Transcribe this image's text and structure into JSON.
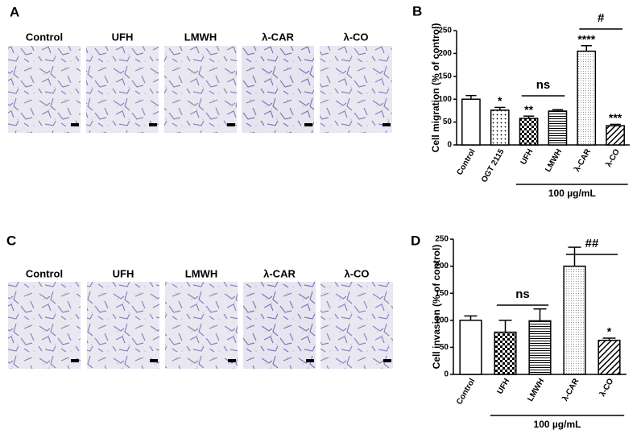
{
  "panels": {
    "A": {
      "label": "A",
      "images": [
        "Control",
        "UFH",
        "LMWH",
        "λ-CAR",
        "λ-CO"
      ]
    },
    "C": {
      "label": "C",
      "images": [
        "Control",
        "UFH",
        "LMWH",
        "λ-CAR",
        "λ-CO"
      ]
    }
  },
  "chart_data": [
    {
      "type": "bar",
      "panel_label": "B",
      "y_label": "Cell migration (% of control)",
      "categories": [
        "Control",
        "OGT 2115",
        "UFH",
        "LMWH",
        "λ-CAR",
        "λ-CO"
      ],
      "values": [
        100,
        76,
        58,
        74,
        205,
        42
      ],
      "errors": [
        8,
        6,
        5,
        3,
        12,
        3
      ],
      "significance": [
        null,
        "*",
        "**",
        null,
        "****",
        "***"
      ],
      "annotations": [
        "ns",
        "#"
      ],
      "group_label": "100 µg/mL",
      "color": "#000000",
      "ylim": [
        0,
        250
      ],
      "yticks": [
        0,
        50,
        100,
        150,
        200,
        250
      ]
    },
    {
      "type": "bar",
      "panel_label": "D",
      "y_label": "Cell invasion (% of control)",
      "categories": [
        "Control",
        "UFH",
        "LMWH",
        "λ-CAR",
        "λ-CO"
      ],
      "values": [
        100,
        78,
        99,
        200,
        63
      ],
      "errors": [
        8,
        22,
        22,
        35,
        4
      ],
      "significance": [
        null,
        null,
        null,
        null,
        "*"
      ],
      "annotations": [
        "ns",
        "##"
      ],
      "group_label": "100 µg/mL",
      "color": "#000000",
      "ylim": [
        0,
        250
      ],
      "yticks": [
        0,
        50,
        100,
        150,
        200,
        250
      ]
    }
  ]
}
